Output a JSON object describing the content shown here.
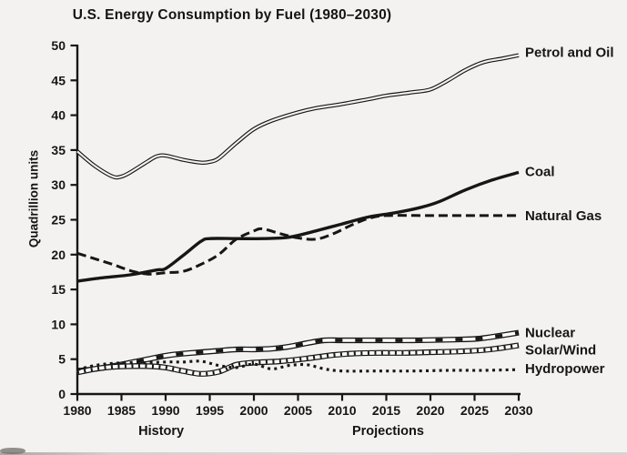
{
  "page": {
    "background": "#f3f2f0",
    "ink": "#161616",
    "tube_fill": "#fcfcfb"
  },
  "chart_data": {
    "type": "line",
    "title": "U.S. Energy Consumption by Fuel (1980–2030)",
    "ylabel": "Quadrillion units",
    "xlabel": "",
    "ylim": [
      0,
      50
    ],
    "xlim": [
      1980,
      2030
    ],
    "grid": "off",
    "legend_position": "right-end-of-line-labels",
    "y_ticks": [
      0,
      5,
      10,
      15,
      20,
      25,
      30,
      35,
      40,
      45,
      50
    ],
    "x_ticks": [
      1980,
      1985,
      1990,
      1995,
      2000,
      2005,
      2010,
      2015,
      2020,
      2025,
      2030
    ],
    "annotations": [
      {
        "label": "History",
        "x_year": 1989.5
      },
      {
        "label": "Projections",
        "x_year": 2015.2
      }
    ],
    "series": [
      {
        "name": "Petrol and Oil",
        "line_style": "double-line",
        "points": [
          [
            1980,
            34.8
          ],
          [
            1982,
            32.7
          ],
          [
            1984,
            31.2
          ],
          [
            1985,
            31.2
          ],
          [
            1986,
            31.8
          ],
          [
            1988,
            33.4
          ],
          [
            1989,
            34.1
          ],
          [
            1990,
            34.2
          ],
          [
            1992,
            33.6
          ],
          [
            1994,
            33.2
          ],
          [
            1995,
            33.3
          ],
          [
            1996,
            33.8
          ],
          [
            1998,
            36.0
          ],
          [
            2000,
            38.0
          ],
          [
            2002,
            39.2
          ],
          [
            2005,
            40.4
          ],
          [
            2007,
            41.0
          ],
          [
            2010,
            41.6
          ],
          [
            2013,
            42.3
          ],
          [
            2015,
            42.8
          ],
          [
            2018,
            43.3
          ],
          [
            2020,
            43.7
          ],
          [
            2022,
            45.0
          ],
          [
            2024,
            46.5
          ],
          [
            2026,
            47.6
          ],
          [
            2028,
            48.1
          ],
          [
            2030,
            48.6
          ]
        ]
      },
      {
        "name": "Coal",
        "line_style": "solid",
        "points": [
          [
            1980,
            16.2
          ],
          [
            1983,
            16.7
          ],
          [
            1986,
            17.1
          ],
          [
            1989,
            17.8
          ],
          [
            1990,
            18.0
          ],
          [
            1992,
            19.9
          ],
          [
            1994,
            21.9
          ],
          [
            1995,
            22.3
          ],
          [
            1998,
            22.3
          ],
          [
            2001,
            22.3
          ],
          [
            2004,
            22.5
          ],
          [
            2007,
            23.4
          ],
          [
            2010,
            24.4
          ],
          [
            2013,
            25.4
          ],
          [
            2016,
            26.0
          ],
          [
            2019,
            26.8
          ],
          [
            2021,
            27.6
          ],
          [
            2024,
            29.3
          ],
          [
            2027,
            30.7
          ],
          [
            2030,
            31.8
          ]
        ]
      },
      {
        "name": "Natural Gas",
        "line_style": "dashed",
        "points": [
          [
            1980,
            20.2
          ],
          [
            1982,
            19.4
          ],
          [
            1984,
            18.6
          ],
          [
            1986,
            17.7
          ],
          [
            1988,
            17.2
          ],
          [
            1990,
            17.4
          ],
          [
            1992,
            17.6
          ],
          [
            1994,
            18.6
          ],
          [
            1996,
            20.0
          ],
          [
            1998,
            22.2
          ],
          [
            2000,
            23.4
          ],
          [
            2001,
            23.7
          ],
          [
            2003,
            23.0
          ],
          [
            2005,
            22.4
          ],
          [
            2007,
            22.2
          ],
          [
            2009,
            23.0
          ],
          [
            2011,
            24.2
          ],
          [
            2013,
            25.2
          ],
          [
            2015,
            25.6
          ],
          [
            2020,
            25.6
          ],
          [
            2025,
            25.6
          ],
          [
            2030,
            25.6
          ]
        ]
      },
      {
        "name": "Nuclear",
        "line_style": "tube-squares",
        "points": [
          [
            1980,
            3.3
          ],
          [
            1982,
            3.6
          ],
          [
            1984,
            4.0
          ],
          [
            1986,
            4.5
          ],
          [
            1988,
            5.0
          ],
          [
            1990,
            5.5
          ],
          [
            1992,
            5.8
          ],
          [
            1994,
            6.0
          ],
          [
            1996,
            6.2
          ],
          [
            1998,
            6.4
          ],
          [
            2000,
            6.4
          ],
          [
            2002,
            6.5
          ],
          [
            2004,
            6.8
          ],
          [
            2006,
            7.3
          ],
          [
            2008,
            7.7
          ],
          [
            2010,
            7.7
          ],
          [
            2014,
            7.7
          ],
          [
            2018,
            7.7
          ],
          [
            2022,
            7.8
          ],
          [
            2025,
            7.9
          ],
          [
            2027,
            8.2
          ],
          [
            2030,
            8.8
          ]
        ]
      },
      {
        "name": "Solar/Wind",
        "line_style": "tube-hatched",
        "points": [
          [
            1980,
            3.1
          ],
          [
            1982,
            3.6
          ],
          [
            1984,
            3.9
          ],
          [
            1986,
            4.0
          ],
          [
            1988,
            4.0
          ],
          [
            1990,
            3.8
          ],
          [
            1992,
            3.3
          ],
          [
            1994,
            2.9
          ],
          [
            1996,
            3.2
          ],
          [
            1998,
            4.2
          ],
          [
            2000,
            4.5
          ],
          [
            2003,
            4.7
          ],
          [
            2006,
            5.1
          ],
          [
            2009,
            5.6
          ],
          [
            2011,
            5.8
          ],
          [
            2014,
            5.9
          ],
          [
            2017,
            5.9
          ],
          [
            2020,
            6.0
          ],
          [
            2023,
            6.1
          ],
          [
            2026,
            6.3
          ],
          [
            2028,
            6.6
          ],
          [
            2030,
            7.0
          ]
        ]
      },
      {
        "name": "Hydropower",
        "line_style": "dotted",
        "points": [
          [
            1980,
            3.5
          ],
          [
            1982,
            4.1
          ],
          [
            1984,
            4.4
          ],
          [
            1986,
            4.5
          ],
          [
            1988,
            4.5
          ],
          [
            1990,
            4.6
          ],
          [
            1992,
            4.6
          ],
          [
            1994,
            4.7
          ],
          [
            1996,
            4.1
          ],
          [
            1998,
            3.8
          ],
          [
            2000,
            4.3
          ],
          [
            2002,
            3.6
          ],
          [
            2004,
            4.1
          ],
          [
            2006,
            4.2
          ],
          [
            2008,
            3.6
          ],
          [
            2010,
            3.3
          ],
          [
            2014,
            3.3
          ],
          [
            2018,
            3.3
          ],
          [
            2022,
            3.4
          ],
          [
            2026,
            3.4
          ],
          [
            2030,
            3.5
          ]
        ]
      }
    ]
  }
}
